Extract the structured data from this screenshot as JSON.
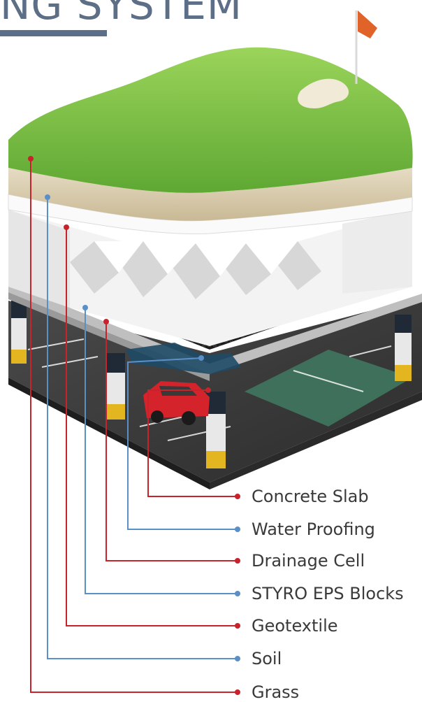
{
  "title": "NG SYSTEM",
  "colors": {
    "red_leader": "#c8232b",
    "blue_leader": "#5b8fc8",
    "title": "#5d6f86",
    "grass": "#7dc24a",
    "soil": "#d8c9a8",
    "eps": "#f1f1f1",
    "drainage": "#2a2a2a",
    "waterproof": "#1e4a66",
    "floor": "#3a3a3a"
  },
  "layers": [
    {
      "label": "Concrete Slab",
      "leader_color": "red"
    },
    {
      "label": "Water Proofing",
      "leader_color": "blue"
    },
    {
      "label": "Drainage Cell",
      "leader_color": "red"
    },
    {
      "label": "STYRO EPS Blocks",
      "leader_color": "blue"
    },
    {
      "label": "Geotextile",
      "leader_color": "red"
    },
    {
      "label": "Soil",
      "leader_color": "blue"
    },
    {
      "label": "Grass",
      "leader_color": "red"
    }
  ]
}
